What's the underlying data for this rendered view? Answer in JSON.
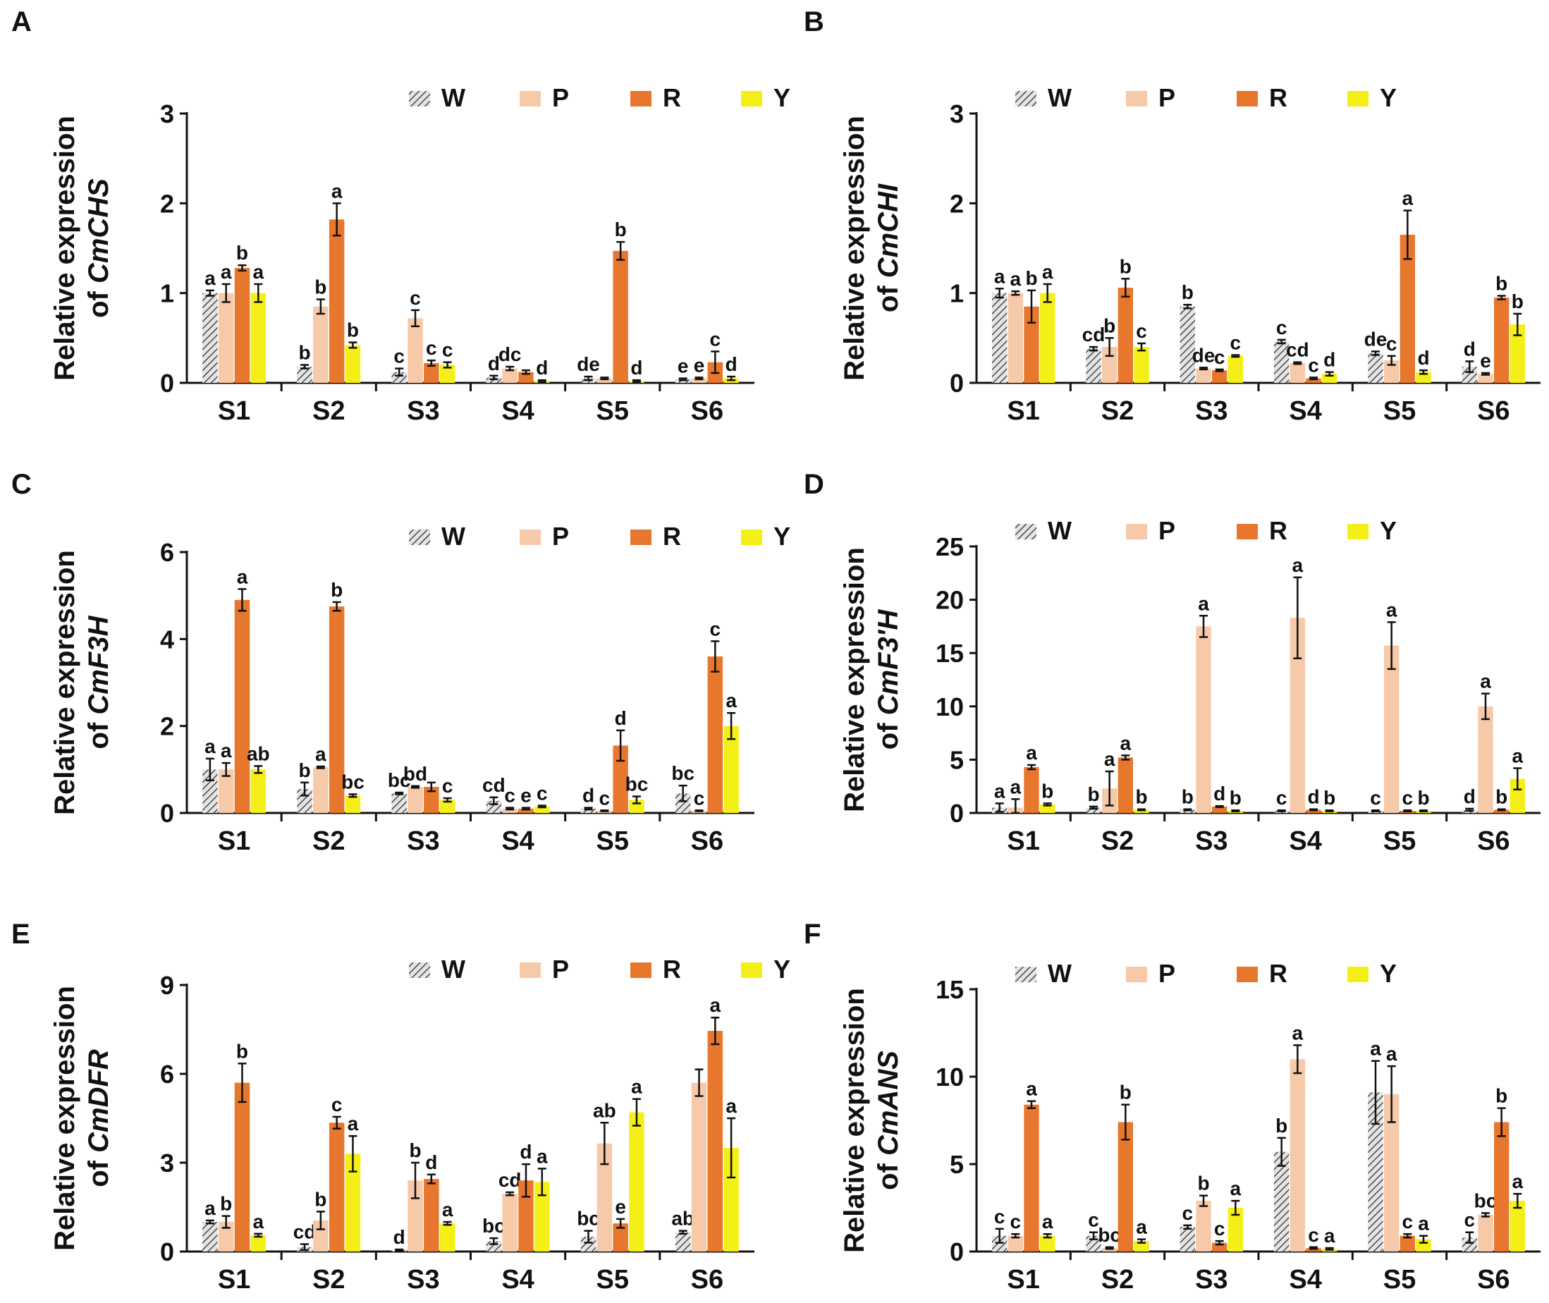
{
  "figure": {
    "panels": [
      "A",
      "B",
      "C",
      "D",
      "E",
      "F"
    ],
    "legend": [
      "W",
      "P",
      "R",
      "Y"
    ],
    "series_colors": {
      "W": "#9a9a9a",
      "P": "#f6c9a8",
      "R": "#e8772e",
      "Y": "#f5ef18"
    }
  },
  "chart_data": [
    {
      "panel": "A",
      "type": "bar",
      "ylabel_line1": "Relative expression",
      "ylabel_prefix": "of ",
      "ylabel_gene": "CmCHS",
      "categories": [
        "S1",
        "S2",
        "S3",
        "S4",
        "S5",
        "S6"
      ],
      "ylim": [
        0,
        3
      ],
      "yticks": [
        0,
        1,
        2,
        3
      ],
      "series": [
        {
          "name": "W",
          "values": [
            1.0,
            0.18,
            0.12,
            0.06,
            0.05,
            0.04
          ],
          "errors": [
            0.03,
            0.02,
            0.04,
            0.02,
            0.02,
            0.01
          ],
          "labels": [
            "a",
            "b",
            "c",
            "d",
            "de",
            "e"
          ]
        },
        {
          "name": "P",
          "values": [
            1.0,
            0.85,
            0.72,
            0.16,
            0.05,
            0.05
          ],
          "errors": [
            0.1,
            0.08,
            0.09,
            0.02,
            0.01,
            0.01
          ],
          "labels": [
            "a",
            "b",
            "c",
            "dc",
            "",
            "e"
          ]
        },
        {
          "name": "R",
          "values": [
            1.28,
            1.82,
            0.22,
            0.12,
            1.47,
            0.23
          ],
          "errors": [
            0.03,
            0.18,
            0.03,
            0.02,
            0.1,
            0.12
          ],
          "labels": [
            "b",
            "a",
            "c",
            "",
            "b",
            "c"
          ]
        },
        {
          "name": "Y",
          "values": [
            1.0,
            0.42,
            0.2,
            0.02,
            0.02,
            0.05
          ],
          "errors": [
            0.1,
            0.03,
            0.03,
            0.01,
            0.01,
            0.02
          ],
          "labels": [
            "a",
            "b",
            "c",
            "d",
            "d",
            "d"
          ]
        }
      ]
    },
    {
      "panel": "B",
      "type": "bar",
      "ylabel_line1": "Relative expression",
      "ylabel_prefix": "of ",
      "ylabel_gene": "CmCHI",
      "categories": [
        "S1",
        "S2",
        "S3",
        "S4",
        "S5",
        "S6"
      ],
      "ylim": [
        0,
        3
      ],
      "yticks": [
        0,
        1,
        2,
        3
      ],
      "series": [
        {
          "name": "W",
          "values": [
            1.0,
            0.38,
            0.85,
            0.46,
            0.33,
            0.18
          ],
          "errors": [
            0.05,
            0.02,
            0.02,
            0.02,
            0.02,
            0.06
          ],
          "labels": [
            "a",
            "cd",
            "b",
            "c",
            "de",
            "d"
          ]
        },
        {
          "name": "P",
          "values": [
            1.0,
            0.4,
            0.16,
            0.22,
            0.25,
            0.1
          ],
          "errors": [
            0.02,
            0.1,
            0.01,
            0.01,
            0.05,
            0.01
          ],
          "labels": [
            "a",
            "b",
            "de",
            "cd",
            "c",
            "e"
          ]
        },
        {
          "name": "R",
          "values": [
            0.85,
            1.06,
            0.14,
            0.05,
            1.65,
            0.95
          ],
          "errors": [
            0.18,
            0.1,
            0.01,
            0.01,
            0.27,
            0.02
          ],
          "labels": [
            "b",
            "b",
            "c",
            "c",
            "a",
            "b"
          ]
        },
        {
          "name": "Y",
          "values": [
            1.0,
            0.4,
            0.3,
            0.1,
            0.12,
            0.65
          ],
          "errors": [
            0.1,
            0.04,
            0.01,
            0.02,
            0.02,
            0.12
          ],
          "labels": [
            "a",
            "c",
            "c",
            "d",
            "d",
            "b"
          ]
        }
      ]
    },
    {
      "panel": "C",
      "type": "bar",
      "ylabel_line1": "Relative expression",
      "ylabel_prefix": "of ",
      "ylabel_gene": "CmF3H",
      "categories": [
        "S1",
        "S2",
        "S3",
        "S4",
        "S5",
        "S6"
      ],
      "ylim": [
        0,
        6
      ],
      "yticks": [
        0,
        2,
        4,
        6
      ],
      "series": [
        {
          "name": "W",
          "values": [
            1.0,
            0.55,
            0.45,
            0.28,
            0.1,
            0.45
          ],
          "errors": [
            0.25,
            0.15,
            0.02,
            0.08,
            0.02,
            0.18
          ],
          "labels": [
            "a",
            "b",
            "bc",
            "cd",
            "d",
            "bc"
          ]
        },
        {
          "name": "P",
          "values": [
            1.0,
            1.05,
            0.6,
            0.1,
            0.05,
            0.05
          ],
          "errors": [
            0.15,
            0.02,
            0.02,
            0.02,
            0.01,
            0.01
          ],
          "labels": [
            "a",
            "a",
            "bd",
            "c",
            "c",
            "c"
          ]
        },
        {
          "name": "R",
          "values": [
            4.9,
            4.75,
            0.6,
            0.1,
            1.55,
            3.6
          ],
          "errors": [
            0.25,
            0.1,
            0.1,
            0.02,
            0.35,
            0.35
          ],
          "labels": [
            "a",
            "b",
            "",
            "e",
            "d",
            "c"
          ]
        },
        {
          "name": "Y",
          "values": [
            1.0,
            0.4,
            0.3,
            0.15,
            0.3,
            2.0
          ],
          "errors": [
            0.08,
            0.03,
            0.04,
            0.02,
            0.08,
            0.3
          ],
          "labels": [
            "ab",
            "bc",
            "c",
            "c",
            "bc",
            "a"
          ]
        }
      ]
    },
    {
      "panel": "D",
      "type": "bar",
      "ylabel_line1": "Relative expression",
      "ylabel_prefix": "of ",
      "ylabel_gene": "CmF3'H",
      "categories": [
        "S1",
        "S2",
        "S3",
        "S4",
        "S5",
        "S6"
      ],
      "ylim": [
        0,
        25
      ],
      "yticks": [
        0,
        5,
        10,
        15,
        20,
        25
      ],
      "series": [
        {
          "name": "W",
          "values": [
            0.5,
            0.5,
            0.3,
            0.2,
            0.2,
            0.3
          ],
          "errors": [
            0.4,
            0.1,
            0.05,
            0.05,
            0.05,
            0.1
          ],
          "labels": [
            "a",
            "b",
            "b",
            "c",
            "c",
            "d"
          ]
        },
        {
          "name": "P",
          "values": [
            0.5,
            2.3,
            17.5,
            18.3,
            15.7,
            10.0
          ],
          "errors": [
            0.8,
            1.6,
            1.0,
            3.8,
            2.2,
            1.2
          ],
          "labels": [
            "a",
            "a",
            "a",
            "a",
            "a",
            "a"
          ]
        },
        {
          "name": "R",
          "values": [
            4.3,
            5.2,
            0.6,
            0.3,
            0.2,
            0.3
          ],
          "errors": [
            0.2,
            0.2,
            0.05,
            0.05,
            0.05,
            0.05
          ],
          "labels": [
            "a",
            "a",
            "d",
            "d",
            "c",
            "b"
          ]
        },
        {
          "name": "Y",
          "values": [
            0.8,
            0.3,
            0.2,
            0.2,
            0.2,
            3.2
          ],
          "errors": [
            0.1,
            0.05,
            0.05,
            0.05,
            0.05,
            1.0
          ],
          "labels": [
            "b",
            "b",
            "b",
            "b",
            "b",
            "a"
          ]
        }
      ]
    },
    {
      "panel": "E",
      "type": "bar",
      "ylabel_line1": "Relative expression",
      "ylabel_prefix": "of ",
      "ylabel_gene": "CmDFR",
      "categories": [
        "S1",
        "S2",
        "S3",
        "S4",
        "S5",
        "S6"
      ],
      "ylim": [
        0,
        9
      ],
      "yticks": [
        0,
        3,
        6,
        9
      ],
      "series": [
        {
          "name": "W",
          "values": [
            1.0,
            0.15,
            0.05,
            0.35,
            0.5,
            0.65
          ],
          "errors": [
            0.05,
            0.1,
            0.02,
            0.1,
            0.2,
            0.05
          ],
          "labels": [
            "a",
            "cd",
            "d",
            "bc",
            "bc",
            "ab"
          ]
        },
        {
          "name": "P",
          "values": [
            1.0,
            1.05,
            2.4,
            1.95,
            3.65,
            5.7
          ],
          "errors": [
            0.2,
            0.3,
            0.6,
            0.05,
            0.7,
            0.45
          ],
          "labels": [
            "b",
            "b",
            "b",
            "cd",
            "ab",
            ""
          ]
        },
        {
          "name": "R",
          "values": [
            5.7,
            4.35,
            2.45,
            2.4,
            0.95,
            7.45
          ],
          "errors": [
            0.65,
            0.2,
            0.15,
            0.55,
            0.15,
            0.45
          ],
          "labels": [
            "b",
            "c",
            "d",
            "d",
            "e",
            "a"
          ]
        },
        {
          "name": "Y",
          "values": [
            0.55,
            3.3,
            0.95,
            2.35,
            4.7,
            3.5
          ],
          "errors": [
            0.05,
            0.6,
            0.05,
            0.45,
            0.45,
            1.0
          ],
          "labels": [
            "a",
            "a",
            "a",
            "a",
            "a",
            "a"
          ]
        }
      ]
    },
    {
      "panel": "F",
      "type": "bar",
      "ylabel_line1": "Relative expression",
      "ylabel_prefix": "of ",
      "ylabel_gene": "CmANS",
      "categories": [
        "S1",
        "S2",
        "S3",
        "S4",
        "S5",
        "S6"
      ],
      "ylim": [
        0,
        15
      ],
      "yticks": [
        0,
        5,
        10,
        15
      ],
      "series": [
        {
          "name": "W",
          "values": [
            0.9,
            0.9,
            1.4,
            5.7,
            9.1,
            0.8
          ],
          "errors": [
            0.4,
            0.2,
            0.1,
            0.8,
            1.8,
            0.3
          ],
          "labels": [
            "c",
            "c",
            "c",
            "b",
            "a",
            "c"
          ]
        },
        {
          "name": "P",
          "values": [
            0.9,
            0.2,
            2.9,
            11.0,
            9.0,
            2.1
          ],
          "errors": [
            0.1,
            0.05,
            0.3,
            0.8,
            1.6,
            0.1
          ],
          "labels": [
            "c",
            "bc",
            "b",
            "a",
            "a",
            "bc"
          ]
        },
        {
          "name": "R",
          "values": [
            8.4,
            7.4,
            0.5,
            0.2,
            0.9,
            7.4
          ],
          "errors": [
            0.2,
            1.0,
            0.1,
            0.05,
            0.1,
            0.8
          ],
          "labels": [
            "a",
            "b",
            "c",
            "c",
            "c",
            "b"
          ]
        },
        {
          "name": "Y",
          "values": [
            0.9,
            0.6,
            2.5,
            0.15,
            0.7,
            2.9
          ],
          "errors": [
            0.1,
            0.1,
            0.4,
            0.05,
            0.2,
            0.4
          ],
          "labels": [
            "a",
            "a",
            "a",
            "a",
            "a",
            "a"
          ]
        }
      ]
    }
  ]
}
